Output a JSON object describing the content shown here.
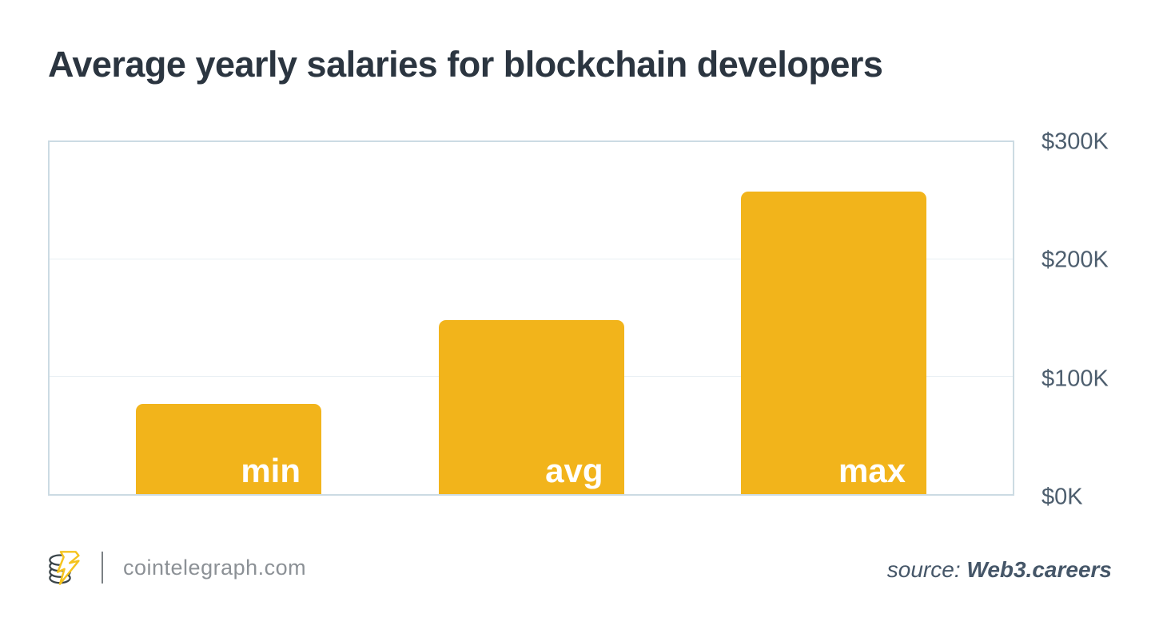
{
  "page": {
    "title": "Average yearly salaries for blockchain developers"
  },
  "footer": {
    "site_label": "cointelegraph.com",
    "source_prefix": "source:",
    "source_name": "Web3.careers"
  },
  "colors": {
    "title_color": "#2b3540",
    "bar_color": "#f2b41b",
    "bar_label_color": "#ffffff",
    "axis_color": "#4d5e6e",
    "grid_color": "#e9eff3",
    "frame_color": "#ccdbe3",
    "footer_color": "#8c9196",
    "source_color": "#455668",
    "logo_dark": "#3a4449",
    "logo_yellow": "#f5c31e"
  },
  "chart_data": {
    "type": "bar",
    "title": "Average yearly salaries for blockchain developers",
    "categories": [
      "min",
      "avg",
      "max"
    ],
    "values": [
      77,
      148,
      258
    ],
    "unit": "$K (USD thousands per year)",
    "xlabel": "",
    "ylabel": "",
    "ylim": [
      0,
      300
    ],
    "yticks": [
      "$0K",
      "$100K",
      "$200K",
      "$300K"
    ],
    "axis_side": "right",
    "grid": true,
    "legend": false,
    "bar_label_position": "inside-bottom-right",
    "source": "Web3.careers"
  }
}
